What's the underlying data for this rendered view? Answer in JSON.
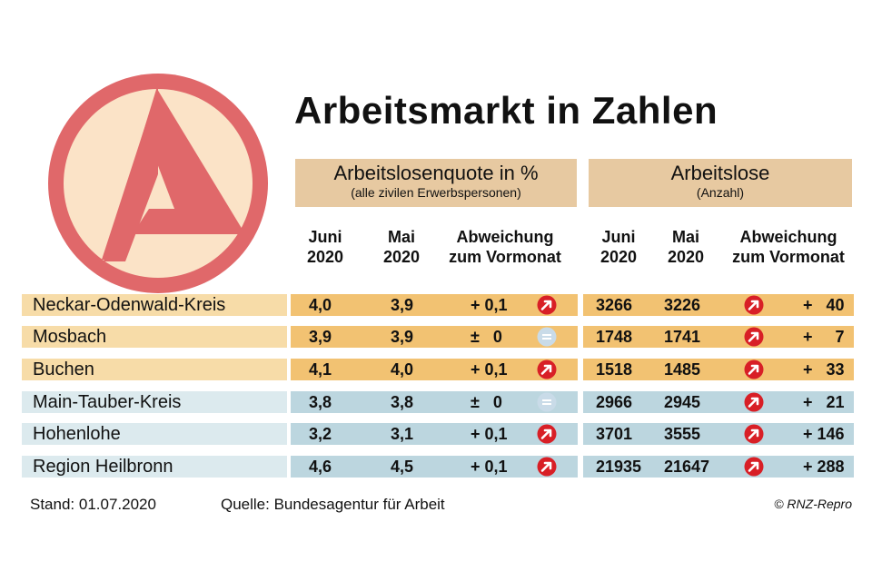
{
  "title": "Arbeitsmarkt in Zahlen",
  "groups": {
    "quote": {
      "title": "Arbeitslosenquote in %",
      "subtitle": "(alle zivilen Erwerbspersonen)"
    },
    "arbeitslose": {
      "title": "Arbeitslose",
      "subtitle": "(Anzahl)"
    }
  },
  "columns": {
    "juni": {
      "line1": "Juni",
      "line2": "2020"
    },
    "mai": {
      "line1": "Mai",
      "line2": "2020"
    },
    "abweichung": {
      "line1": "Abweichung",
      "line2": "zum Vormonat"
    }
  },
  "rows": [
    {
      "name": "Neckar-Odenwald-Kreis",
      "quote_juni": "4,0",
      "quote_mai": "3,9",
      "quote_diff": "+ 0,1",
      "quote_trend": "up",
      "al_juni": "3266",
      "al_mai": "3226",
      "al_trend": "up",
      "al_diff": "+   40",
      "tint": "orange"
    },
    {
      "name": "Mosbach",
      "quote_juni": "3,9",
      "quote_mai": "3,9",
      "quote_diff": "±   0",
      "quote_trend": "equal",
      "al_juni": "1748",
      "al_mai": "1741",
      "al_trend": "up",
      "al_diff": "+     7",
      "tint": "orange"
    },
    {
      "name": "Buchen",
      "quote_juni": "4,1",
      "quote_mai": "4,0",
      "quote_diff": "+ 0,1",
      "quote_trend": "up",
      "al_juni": "1518",
      "al_mai": "1485",
      "al_trend": "up",
      "al_diff": "+   33",
      "tint": "orange"
    },
    {
      "name": "Main-Tauber-Kreis",
      "quote_juni": "3,8",
      "quote_mai": "3,8",
      "quote_diff": "±   0",
      "quote_trend": "equal",
      "al_juni": "2966",
      "al_mai": "2945",
      "al_trend": "up",
      "al_diff": "+   21",
      "tint": "blue"
    },
    {
      "name": "Hohenlohe",
      "quote_juni": "3,2",
      "quote_mai": "3,1",
      "quote_diff": "+ 0,1",
      "quote_trend": "up",
      "al_juni": "3701",
      "al_mai": "3555",
      "al_trend": "up",
      "al_diff": "+ 146",
      "tint": "blue"
    },
    {
      "name": "Region Heilbronn",
      "quote_juni": "4,6",
      "quote_mai": "4,5",
      "quote_diff": "+ 0,1",
      "quote_trend": "up",
      "al_juni": "21935",
      "al_mai": "21647",
      "al_trend": "up",
      "al_diff": "+ 288",
      "tint": "blue"
    }
  ],
  "footer": {
    "stand": "Stand: 01.07.2020",
    "quelle": "Quelle: Bundesagentur für Arbeit",
    "credit": "RNZ-Repro"
  },
  "colors": {
    "logo_red": "#e0686a",
    "logo_cream": "#fbe3c7",
    "orange_row_dark": "#f2c272",
    "orange_row_light": "#f7dca8",
    "blue_row_dark": "#bcd6df",
    "blue_row_light": "#dceaee",
    "header_box": "#e7c9a1",
    "arrow_red": "#d81f26",
    "equal_blue": "#c9dbe8"
  }
}
